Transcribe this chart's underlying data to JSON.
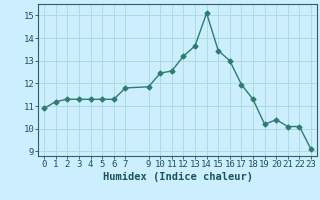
{
  "x": [
    0,
    1,
    2,
    3,
    4,
    5,
    6,
    7,
    9,
    10,
    11,
    12,
    13,
    14,
    15,
    16,
    17,
    18,
    19,
    20,
    21,
    22,
    23
  ],
  "y": [
    10.9,
    11.2,
    11.3,
    11.3,
    11.3,
    11.3,
    11.3,
    11.8,
    11.85,
    12.45,
    12.55,
    13.2,
    13.65,
    15.1,
    13.45,
    13.0,
    11.95,
    11.3,
    10.2,
    10.4,
    10.1,
    10.1,
    9.1
  ],
  "line_color": "#2e7d6e",
  "marker": "D",
  "marker_size": 2.5,
  "bg_color": "#cceeff",
  "grid_color": "#aadddd",
  "xlabel": "Humidex (Indice chaleur)",
  "ylim": [
    8.8,
    15.5
  ],
  "xlim": [
    -0.5,
    23.5
  ],
  "yticks": [
    9,
    10,
    11,
    12,
    13,
    14,
    15
  ],
  "xticks": [
    0,
    1,
    2,
    3,
    4,
    5,
    6,
    7,
    9,
    10,
    11,
    12,
    13,
    14,
    15,
    16,
    17,
    18,
    19,
    20,
    21,
    22,
    23
  ],
  "tick_color": "#1a5555",
  "axis_color": "#2e6060",
  "label_fontsize": 7.5,
  "tick_fontsize": 6.5
}
